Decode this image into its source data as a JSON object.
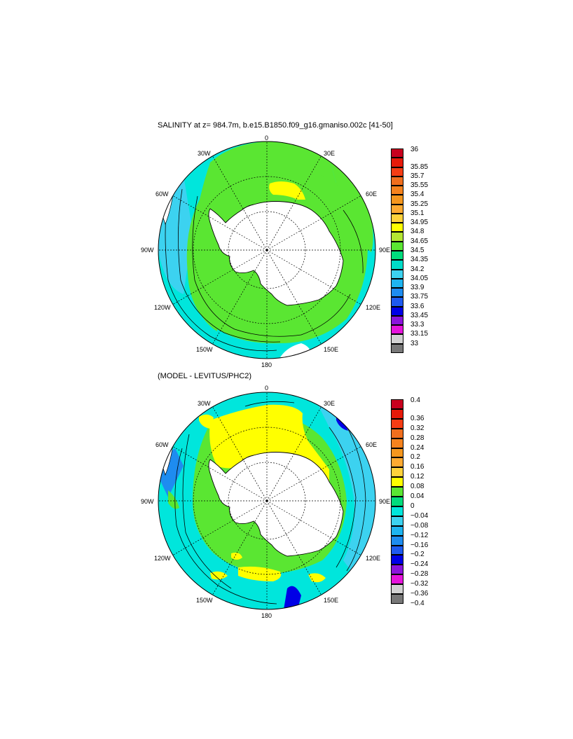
{
  "panel1": {
    "title": "SALINITY at z= 984.7m, b.e15.B1850.f09_g16.gmaniso.002c [41-50]",
    "lon_labels": [
      "0",
      "30E",
      "60E",
      "90E",
      "120E",
      "150E",
      "180",
      "150W",
      "120W",
      "90W",
      "60W",
      "30W"
    ],
    "colorbar": {
      "labels": [
        "36",
        "35.85",
        "35.7",
        "35.55",
        "35.4",
        "35.25",
        "35.1",
        "34.95",
        "34.8",
        "34.65",
        "34.5",
        "34.35",
        "34.2",
        "34.05",
        "33.9",
        "33.75",
        "33.6",
        "33.45",
        "33.3",
        "33.15",
        "33"
      ],
      "colors": [
        "#c8001e",
        "#e61a0a",
        "#f53c14",
        "#f06e1e",
        "#f5821e",
        "#f5961e",
        "#ffaa32",
        "#ffd23c",
        "#ffff00",
        "#b4e632",
        "#5ae632",
        "#00dc7d",
        "#00dcc8",
        "#3cd2f0",
        "#1eb4f0",
        "#1e8cf0",
        "#1e5af0",
        "#0000e6",
        "#8c14dc",
        "#e614dc",
        "#d2d2d2",
        "#787878"
      ]
    }
  },
  "panel2": {
    "title": "(MODEL - LEVITUS/PHC2)",
    "lon_labels": [
      "0",
      "30E",
      "60E",
      "90E",
      "120E",
      "150E",
      "180",
      "150W",
      "120W",
      "90W",
      "60W",
      "30W"
    ],
    "colorbar": {
      "labels": [
        "0.4",
        "0.36",
        "0.32",
        "0.28",
        "0.24",
        "0.2",
        "0.16",
        "0.12",
        "0.08",
        "0.04",
        "0",
        "−0.04",
        "−0.08",
        "−0.12",
        "−0.16",
        "−0.2",
        "−0.24",
        "−0.28",
        "−0.32",
        "−0.36",
        "−0.4"
      ],
      "colors": [
        "#c8001e",
        "#e61a0a",
        "#f53c14",
        "#f06e1e",
        "#f5821e",
        "#f5961e",
        "#ffaa32",
        "#ffd23c",
        "#ffff00",
        "#5ae632",
        "#00dc7d",
        "#00e6dc",
        "#3cd2f0",
        "#1eb4f0",
        "#1e8cf0",
        "#1e5af0",
        "#0000e6",
        "#8c14dc",
        "#e614dc",
        "#d2d2d2",
        "#787878"
      ]
    }
  }
}
